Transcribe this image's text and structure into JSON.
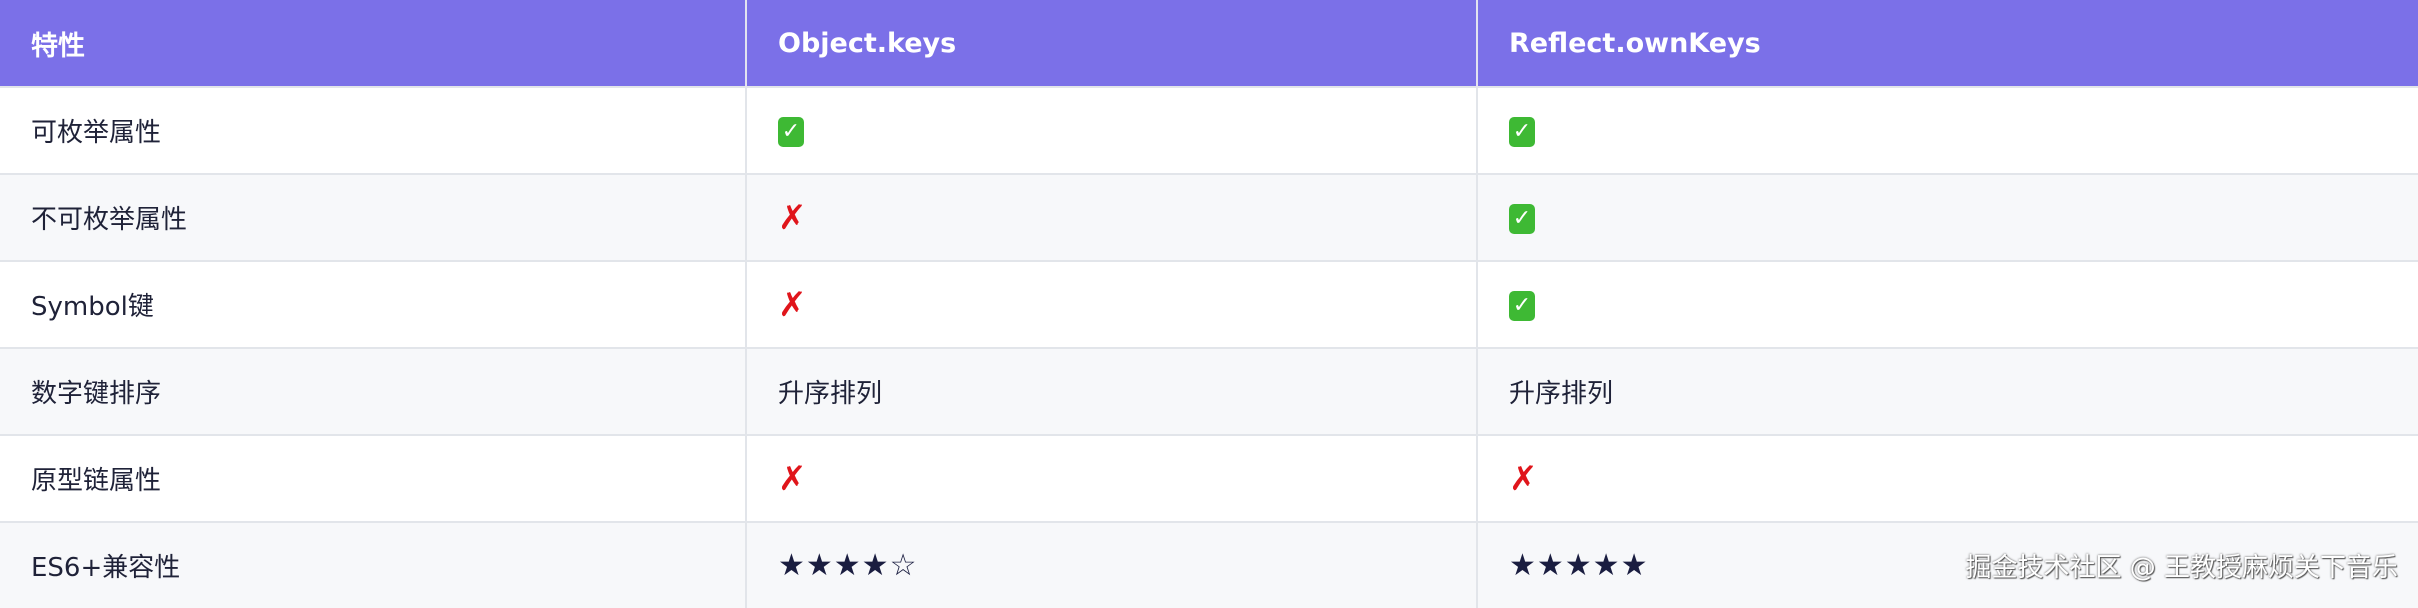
{
  "table": {
    "headers": [
      "特性",
      "Object.keys",
      "Reflect.ownKeys"
    ],
    "rows": [
      {
        "feature": "可枚举属性",
        "object_keys": {
          "type": "check",
          "text": "✓"
        },
        "reflect_ownkeys": {
          "type": "check",
          "text": "✓"
        }
      },
      {
        "feature": "不可枚举属性",
        "object_keys": {
          "type": "cross",
          "text": "✗"
        },
        "reflect_ownkeys": {
          "type": "check",
          "text": "✓"
        }
      },
      {
        "feature": "Symbol键",
        "object_keys": {
          "type": "cross",
          "text": "✗"
        },
        "reflect_ownkeys": {
          "type": "check",
          "text": "✓"
        }
      },
      {
        "feature": "数字键排序",
        "object_keys": {
          "type": "text",
          "text": "升序排列"
        },
        "reflect_ownkeys": {
          "type": "text",
          "text": "升序排列"
        }
      },
      {
        "feature": "原型链属性",
        "object_keys": {
          "type": "cross",
          "text": "✗"
        },
        "reflect_ownkeys": {
          "type": "cross",
          "text": "✗"
        }
      },
      {
        "feature": "ES6+兼容性",
        "object_keys": {
          "type": "stars",
          "text": "★★★★☆",
          "rating": 4
        },
        "reflect_ownkeys": {
          "type": "stars",
          "text": "★★★★★",
          "rating": 5
        }
      }
    ]
  },
  "colors": {
    "header_bg": "#7b70e8",
    "check": "#3eb934",
    "cross": "#e0151b",
    "stars": "#1a1d40"
  },
  "watermark": "掘金技术社区 @ 王教授麻烦关下音乐"
}
